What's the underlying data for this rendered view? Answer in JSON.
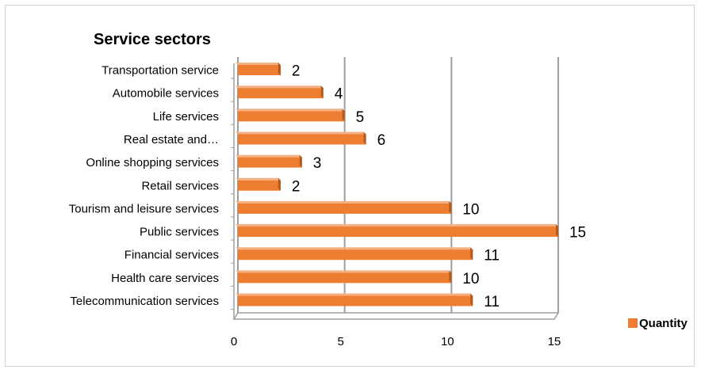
{
  "chart_data": {
    "type": "bar",
    "orientation": "horizontal",
    "title": "Service sectors",
    "categories": [
      "Transportation service",
      "Automobile services",
      "Life services",
      "Real estate and…",
      "Online shopping services",
      "Retail services",
      "Tourism and leisure services",
      "Public services",
      "Financial services",
      "Health care services",
      "Telecommunication services"
    ],
    "series": [
      {
        "name": "Quantity",
        "values": [
          2,
          4,
          5,
          6,
          3,
          2,
          10,
          15,
          11,
          10,
          11
        ],
        "color": "#ED7D31"
      }
    ],
    "xlim": [
      0,
      15
    ],
    "xticks": [
      0,
      5,
      10,
      15
    ],
    "grid": true,
    "legend": "right",
    "style": "3d"
  }
}
